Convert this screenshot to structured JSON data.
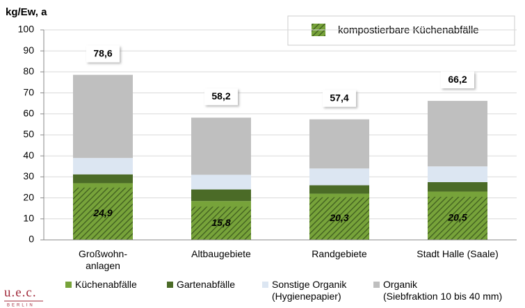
{
  "chart_data": {
    "type": "stacked_bar",
    "y_label": "kg/Ew, a",
    "categories": [
      "Großwohn-\nanlagen",
      "Altbaugebiete",
      "Randgebiete",
      "Stadt Halle (Saale)"
    ],
    "series": [
      {
        "name": "Küchenabfälle",
        "color": "#77a33a",
        "values": [
          27,
          18.5,
          22,
          23
        ]
      },
      {
        "name": "Gartenabfälle",
        "color": "#4b6b27",
        "values": [
          4.2,
          5.5,
          4,
          4.5
        ]
      },
      {
        "name": "Sonstige Organik\n(Hygienepapier)",
        "color": "#dce6f2",
        "values": [
          7.8,
          7,
          8,
          7.5
        ]
      },
      {
        "name": "Organik\n(Siebfraktion 10 bis 40 mm)",
        "color": "#bfbfbf",
        "values": [
          39.6,
          27.2,
          23.4,
          31.2
        ]
      }
    ],
    "totals": [
      78.6,
      58.2,
      57.4,
      66.2
    ],
    "total_labels": [
      "78,6",
      "58,2",
      "57,4",
      "66,2"
    ],
    "overlay": {
      "name": "kompostierbare Küchenabfälle",
      "values": [
        24.9,
        15.8,
        20.3,
        20.5
      ],
      "value_labels": [
        "24,9",
        "15,8",
        "20,3",
        "20,5"
      ]
    },
    "ylim": [
      0,
      100
    ],
    "yticks": [
      0,
      10,
      20,
      30,
      40,
      50,
      60,
      70,
      80,
      90,
      100
    ],
    "grid": true,
    "logo": "u.e.c.",
    "logo_sub": "BERLIN"
  }
}
